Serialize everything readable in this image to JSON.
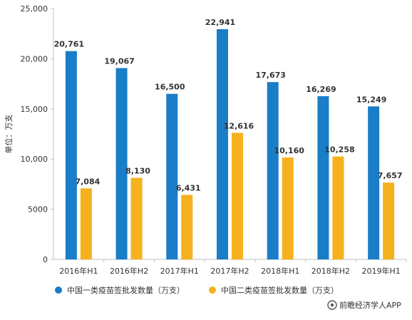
{
  "chart_data": {
    "type": "bar",
    "categories": [
      "2016年H1",
      "2016年H2",
      "2017年H1",
      "2017年H2",
      "2018年H1",
      "2018年H2",
      "2019年H1"
    ],
    "series": [
      {
        "name": "中国一类疫苗签批发数量（万支）",
        "color": "#1a7dc8",
        "values": [
          20761,
          19067,
          16500,
          22941,
          17673,
          16269,
          15249
        ],
        "labels": [
          "20,761",
          "19,067",
          "16,500",
          "22,941",
          "17,673",
          "16,269",
          "15,249"
        ]
      },
      {
        "name": "中国二类疫苗签批发数量（万支）",
        "color": "#f5b21e",
        "values": [
          7084,
          8130,
          6431,
          12616,
          10160,
          10258,
          7657
        ],
        "labels": [
          "7,084",
          "8,130",
          "6,431",
          "12,616",
          "10,160",
          "10,258",
          "7,657"
        ]
      }
    ],
    "ylabel": "单位：万支",
    "ylim": [
      0,
      25000
    ],
    "yticks": [
      0,
      5000,
      10000,
      15000,
      20000,
      25000
    ],
    "ytick_labels": [
      "0",
      "5000",
      "10,000",
      "15,000",
      "20,000",
      "25,000"
    ],
    "grid": false,
    "legend_position": "bottom-left"
  },
  "source_text": "前瞻经济学人APP",
  "logo_icon": "qianzhan-logo-icon"
}
